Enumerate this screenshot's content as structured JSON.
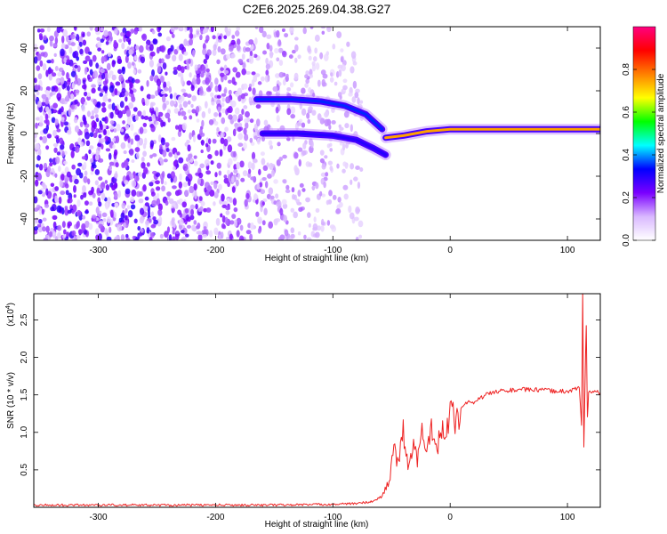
{
  "figure": {
    "title": "C2E6.2025.269.04.38.G27"
  },
  "chart_data": [
    {
      "type": "heatmap",
      "xlabel": "Height of straight line (km)",
      "ylabel": "Frequency (Hz)",
      "xlim": [
        -355,
        128
      ],
      "ylim": [
        -50,
        50
      ],
      "xticks": [
        -300,
        -200,
        -100,
        0,
        100
      ],
      "yticks": [
        -40,
        -20,
        0,
        20,
        40
      ],
      "colorbar": {
        "label": "Normalized spectral amplitude",
        "range": [
          0,
          1
        ],
        "ticks": [
          "0.0",
          "0.2",
          "0.4",
          "0.6",
          "0.8"
        ],
        "tick_values": [
          0.0,
          0.2,
          0.4,
          0.6,
          0.8
        ],
        "colors": [
          "#ffffff",
          "#d9b8ff",
          "#7a00ff",
          "#0000ff",
          "#00ffff",
          "#00ff00",
          "#ffff00",
          "#ff8000",
          "#ff0000",
          "#ff0080"
        ]
      },
      "features": [
        {
          "x": [
            -165,
            -135,
            -110,
            -90,
            -72,
            -58
          ],
          "y": [
            16,
            16,
            15,
            13,
            9,
            2
          ],
          "amplitude": 0.35
        },
        {
          "x": [
            -160,
            -130,
            -100,
            -80,
            -65,
            -55
          ],
          "y": [
            0,
            0,
            -1,
            -3,
            -7,
            -10
          ],
          "amplitude": 0.3
        },
        {
          "x": [
            -55,
            -40,
            -20,
            0,
            40,
            80,
            110,
            128
          ],
          "y": [
            -2,
            -1,
            1,
            2,
            2,
            2,
            2,
            2
          ],
          "amplitude": 0.75
        }
      ]
    },
    {
      "type": "line",
      "xlabel": "Height of straight line (km)",
      "ylabel": "SNR (10 * v/v)",
      "yscale_label": "(x10",
      "yscale_exp": "4",
      "yscale_close": ")",
      "xlim": [
        -355,
        128
      ],
      "ylim": [
        0,
        2.85
      ],
      "xticks": [
        -300,
        -200,
        -100,
        0,
        100
      ],
      "yticks": [
        "0.5",
        "1.0",
        "1.5",
        "2.0",
        "2.5"
      ],
      "ytick_values": [
        0.5,
        1.0,
        1.5,
        2.0,
        2.5
      ],
      "color": "#ee2222",
      "series": [
        {
          "x": [
            -355,
            -300,
            -250,
            -200,
            -150,
            -100,
            -80,
            -65,
            -58,
            -52,
            -48,
            -44,
            -40,
            -36,
            -32,
            -28,
            -24,
            -20,
            -16,
            -12,
            -8,
            -4,
            0,
            5,
            10,
            15,
            20,
            25,
            30,
            35,
            40,
            50,
            60,
            70,
            80,
            90,
            100,
            105,
            110,
            112,
            113,
            114,
            115,
            116,
            117,
            118,
            120,
            128
          ],
          "y": [
            0.03,
            0.03,
            0.03,
            0.03,
            0.03,
            0.04,
            0.05,
            0.08,
            0.15,
            0.35,
            0.8,
            0.55,
            1.05,
            0.5,
            0.85,
            0.6,
            1.0,
            0.7,
            1.15,
            0.8,
            0.95,
            1.1,
            1.25,
            1.15,
            1.35,
            1.4,
            1.38,
            1.45,
            1.5,
            1.52,
            1.55,
            1.56,
            1.57,
            1.57,
            1.56,
            1.55,
            1.55,
            1.57,
            1.6,
            1.1,
            2.85,
            0.8,
            1.65,
            2.45,
            1.2,
            1.55,
            1.54,
            1.53
          ]
        }
      ]
    }
  ]
}
